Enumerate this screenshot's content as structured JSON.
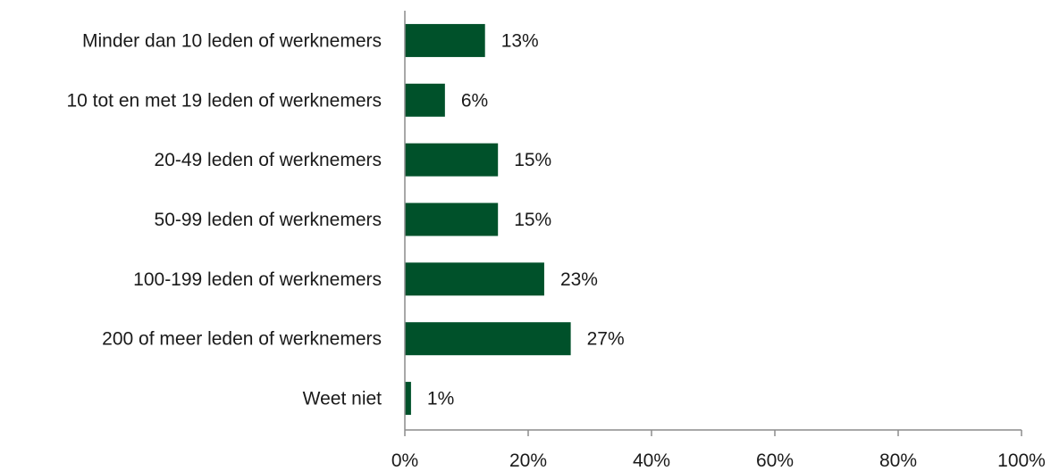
{
  "chart_data": {
    "type": "bar",
    "orientation": "horizontal",
    "categories": [
      "Minder dan 10 leden of werknemers",
      "10 tot en met 19 leden of werknemers",
      "20-49 leden of werknemers",
      "50-99 leden of werknemers",
      "100-199 leden of werknemers",
      "200 of meer leden of werknemers",
      "Weet niet"
    ],
    "values": [
      13,
      6,
      15,
      15,
      23,
      27,
      1
    ],
    "bar_lengths": [
      13,
      6.5,
      15.1,
      15.1,
      22.6,
      26.9,
      1
    ],
    "value_labels": [
      "13%",
      "6%",
      "15%",
      "15%",
      "23%",
      "27%",
      "1%"
    ],
    "xlim": [
      0,
      100
    ],
    "xticks": [
      0,
      20,
      40,
      60,
      80,
      100
    ],
    "xtick_labels": [
      "0%",
      "20%",
      "40%",
      "60%",
      "80%",
      "100%"
    ],
    "bar_color": "#00512a",
    "grid": false,
    "legend": "none"
  }
}
